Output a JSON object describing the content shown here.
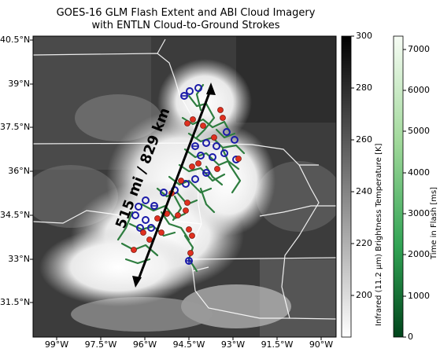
{
  "title": {
    "line1": "GOES-16 GLM Flash Extent and ABI Cloud Imagery",
    "line2": "with ENTLN Cloud-to-Ground Strokes"
  },
  "map": {
    "lat_ticks": [
      "40.5°N",
      "39°N",
      "37.5°N",
      "36°N",
      "34.5°N",
      "33°N",
      "31.5°N"
    ],
    "lon_ticks": [
      "99°W",
      "97.5°W",
      "96°W",
      "94.5°W",
      "93°W",
      "91.5°W",
      "90°W"
    ],
    "annotation": "515 mi / 829 km",
    "colors": {
      "flash_branches": "#2e7d3f",
      "positive_strokes": "#e03020",
      "negative_strokes": "#1a1aa8",
      "borders": "#ffffff"
    }
  },
  "colorbars": {
    "brightness": {
      "label": "Infrared (11.2 μm) Brightness Temperature [K]",
      "ticks": [
        "300",
        "280",
        "260",
        "240",
        "220",
        "200"
      ]
    },
    "flash_time": {
      "label": "Time in Flash [ms]",
      "ticks": [
        "7000",
        "6000",
        "5000",
        "4000",
        "3000",
        "2000",
        "1000",
        "0"
      ]
    }
  }
}
